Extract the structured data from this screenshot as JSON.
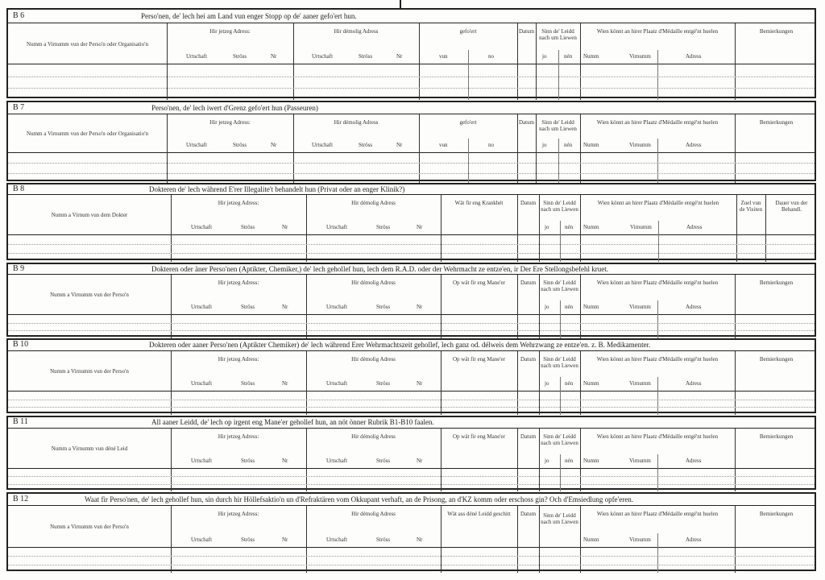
{
  "sections": [
    {
      "code": "B 6",
      "title": "Perso'nen, de' lech hei am Land vun enger Stopp  op de' aaner gefo'ert hun.",
      "layout": "A",
      "columns": [
        {
          "label": "Numm a Virnumm vun der Perso'n oder Organisatio'n",
          "sub": []
        },
        {
          "label": "Hir jetzeg Adress:",
          "sub": [
            "Urtschaft",
            "Ströss",
            "Nr"
          ]
        },
        {
          "label": "Hir démolig Adress",
          "sub": [
            "Urtschaft",
            "Ströss",
            "Nr"
          ]
        },
        {
          "label": "gefo'ert",
          "sub": [
            "vun",
            "no"
          ]
        },
        {
          "label": "Datum",
          "sub": []
        },
        {
          "label": "Sinn de' Leidd nach um Liewen",
          "sub": [
            "jo",
            "nén"
          ]
        },
        {
          "label": "Wien könnt an hirer Plaatz d'Médaille entgé'nt huelen",
          "sub": [
            "Numm",
            "Virnumm",
            "Adress"
          ]
        },
        {
          "label": "Bemierkungen",
          "sub": []
        }
      ]
    },
    {
      "code": "B 7",
      "title": "Perso'nen, de' lech iwert d'Grenz gefo'ert hun (Passeuren)",
      "layout": "A",
      "columns": [
        {
          "label": "Numm a Virnumm vun der Perso'n oder Organisatio'n",
          "sub": []
        },
        {
          "label": "Hir jetzeg Adress:",
          "sub": [
            "Urtschaft",
            "Ströss",
            "Nr"
          ]
        },
        {
          "label": "Hir démolig Adress",
          "sub": [
            "Urtschaft",
            "Ströss",
            "Nr"
          ]
        },
        {
          "label": "gefo'ert",
          "sub": [
            "vun",
            "no"
          ]
        },
        {
          "label": "Datum",
          "sub": []
        },
        {
          "label": "Sinn de' Leidd nach um Liewen",
          "sub": [
            "jo",
            "nén"
          ]
        },
        {
          "label": "Wien könnt an hirer Plaatz d'Médaille entgé'nt huelen",
          "sub": [
            "Numm",
            "Virnumm",
            "Adress"
          ]
        },
        {
          "label": "Bemierkungen",
          "sub": []
        }
      ]
    },
    {
      "code": "B 8",
      "title": "Dokteren de' lech während E'rer Illegalite't behandelt hun (Privat oder an enger Klinik?)",
      "layout": "B",
      "columns": [
        {
          "label": "Numm a Virnum vun dem Dokter",
          "sub": []
        },
        {
          "label": "Hir jetzeg Adress:",
          "sub": [
            "Urtschaft",
            "Ströss",
            "Nr"
          ]
        },
        {
          "label": "Hir démolig Adress",
          "sub": [
            "Urtschaft",
            "Ströss",
            "Nr"
          ]
        },
        {
          "label": "Wät fir eng Krankhét",
          "sub": []
        },
        {
          "label": "Datum",
          "sub": []
        },
        {
          "label": "Sinn de' Leidd nach um Liewen",
          "sub": [
            "jo",
            "nén"
          ]
        },
        {
          "label": "Wien könnt an hirer Plaatz d'Médaille entgé'nt huelen",
          "sub": [
            "Numm",
            "Virnumm",
            "Adress"
          ]
        },
        {
          "label": "Zuel vun de Visiten",
          "sub": []
        },
        {
          "label": "Dauer vun der Behandl.",
          "sub": []
        }
      ]
    },
    {
      "code": "B 9",
      "title": "Dokteren oder äner Perso'nen (Aptikter, Chemiker,) de' lech gehollef hun, lech dem R.A.D. oder der Wehrmacht ze entze'en, ir Der Ere Stellongsbefehl kruet.",
      "layout": "C",
      "columns": [
        {
          "label": "Numm a Virnumm vun der Perso'n",
          "sub": []
        },
        {
          "label": "Hir jetzeg Adress:",
          "sub": [
            "Urtschaft",
            "Ströss",
            "Nr"
          ]
        },
        {
          "label": "Hir démolig Adress",
          "sub": [
            "Urtschaft",
            "Ströss",
            "Nr"
          ]
        },
        {
          "label": "Op wät fir eng Mane'er",
          "sub": []
        },
        {
          "label": "Datum",
          "sub": []
        },
        {
          "label": "Sinn de' Leidd nach um Liewen",
          "sub": [
            "jo",
            "nén"
          ]
        },
        {
          "label": "Wien könnt an hirer Plaatz d'Médaille entgé'nt huelen",
          "sub": [
            "Numm",
            "Virnumm",
            "Adress"
          ]
        },
        {
          "label": "Bemierkungen",
          "sub": []
        }
      ]
    },
    {
      "code": "B 10",
      "title": "Dokteren oder aaner Perso'nen (Aptikter Chemiker) de' lech während Erer Wehrmachtszeit gehollef, lech ganz od. délweis dem Wehrzwang ze entze'en. z. B. Medikamenter.",
      "layout": "C",
      "columns": [
        {
          "label": "Numm a Virnumm vun der Perso'n",
          "sub": []
        },
        {
          "label": "Hir jetzeg Adress:",
          "sub": [
            "Urtschaft",
            "Ströss",
            "Nr"
          ]
        },
        {
          "label": "Hir démolig Adress",
          "sub": [
            "Urtschaft",
            "Ströss",
            "Nr"
          ]
        },
        {
          "label": "Op wät fir eng Mane'er",
          "sub": []
        },
        {
          "label": "Datum",
          "sub": []
        },
        {
          "label": "Sinn de' Leidd nach um Liewen",
          "sub": [
            "jo",
            "nén"
          ]
        },
        {
          "label": "Wien könnt an hirer Plaatz d'Médaille entgé'nt huelen",
          "sub": [
            "Numm",
            "Virnumm",
            "Adress"
          ]
        },
        {
          "label": "Bemierkungen",
          "sub": []
        }
      ]
    },
    {
      "code": "B 11",
      "title": "All aaner Leidd, de' lech op irgent eng Mane'er gehollef hun, an nöt önner Rubrik B1-B10 faalen.",
      "layout": "C",
      "columns": [
        {
          "label": "Numm a Virnumm vun déné Leid",
          "sub": []
        },
        {
          "label": "Hir jetzeg Adress:",
          "sub": [
            "Urtschaft",
            "Ströss",
            "Nr"
          ]
        },
        {
          "label": "Hir démolig Adress",
          "sub": [
            "Urtschaft",
            "Ströss",
            "Nr"
          ]
        },
        {
          "label": "Op wät fir eng Mane'er",
          "sub": []
        },
        {
          "label": "Datum",
          "sub": []
        },
        {
          "label": "Sinn de' Leidd nach um Liewen",
          "sub": [
            "jo",
            "nén"
          ]
        },
        {
          "label": "Wien könnt an hirer Plaatz d'Médaille entgé'nt huelen",
          "sub": [
            "Numm",
            "Virnumm",
            "Adress"
          ]
        },
        {
          "label": "Bemierkungen",
          "sub": []
        }
      ]
    },
    {
      "code": "B 12",
      "title": "Waat fir Perso'nen, de' lech gehollef hun, sin durch hir Höllefsaktio'n un d'Refraktären vom Okkupant verhaft, an de Prisong, an d'KZ komm oder  erschoss gin? Och d'Emsiedlung opfe'eren.",
      "layout": "C",
      "columns": [
        {
          "label": "Numm a Virnumm vun der Perso'n",
          "sub": []
        },
        {
          "label": "Hir jetzeg Adress:",
          "sub": [
            "Urtschaft",
            "Ströss",
            "Nr"
          ]
        },
        {
          "label": "Hir démolig Adress",
          "sub": [
            "Urtschaft",
            "Ströss",
            "Nr"
          ]
        },
        {
          "label": "Wät ass déné Leidd geschitt",
          "sub": []
        },
        {
          "label": "Datum",
          "sub": []
        },
        {
          "label": "Sinn de' Leidd nach um Liewen",
          "sub": []
        },
        {
          "label": "Wien könnt an hirer Plaatz d'Médaille entgé'nt huelen",
          "sub": [
            "Numm",
            "Virnumm",
            "Adress"
          ]
        },
        {
          "label": "Bemierkungen",
          "sub": []
        }
      ]
    }
  ]
}
